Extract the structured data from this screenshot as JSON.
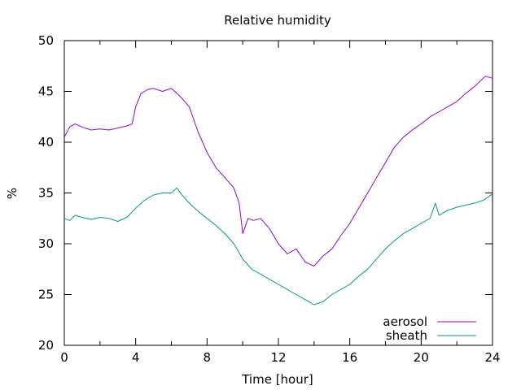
{
  "chart_data": {
    "type": "line",
    "title": "Relative humidity",
    "xlabel": "Time [hour]",
    "ylabel": "%",
    "xlim": [
      0,
      24
    ],
    "ylim": [
      20,
      50
    ],
    "xticks": [
      0,
      4,
      8,
      12,
      16,
      20,
      24
    ],
    "yticks": [
      20,
      25,
      30,
      35,
      40,
      45,
      50
    ],
    "xminor": [
      2,
      6,
      10,
      14,
      18,
      22
    ],
    "grid": false,
    "legend_position": "bottom-right",
    "series": [
      {
        "name": "aerosol",
        "color": "#9400d3",
        "x": [
          0,
          0.3,
          0.6,
          1,
          1.5,
          2,
          2.5,
          3,
          3.5,
          3.8,
          4.0,
          4.3,
          4.7,
          5.0,
          5.5,
          6.0,
          6.5,
          7.0,
          7.5,
          8.0,
          8.5,
          9.0,
          9.5,
          9.8,
          10.0,
          10.3,
          10.6,
          11.0,
          11.5,
          12.0,
          12.5,
          13.0,
          13.5,
          14.0,
          14.5,
          15.0,
          15.5,
          16.0,
          16.5,
          17.0,
          17.5,
          18.0,
          18.5,
          19.0,
          19.5,
          20.0,
          20.5,
          21.0,
          21.5,
          22.0,
          22.5,
          23.0,
          23.3,
          23.6,
          24.0
        ],
        "y": [
          40.5,
          41.5,
          41.8,
          41.5,
          41.2,
          41.3,
          41.2,
          41.4,
          41.6,
          41.8,
          43.5,
          44.8,
          45.2,
          45.3,
          45.0,
          45.3,
          44.5,
          43.5,
          41.0,
          39.0,
          37.5,
          36.5,
          35.5,
          34.0,
          31.0,
          32.5,
          32.3,
          32.5,
          31.5,
          30.0,
          29.0,
          29.5,
          28.2,
          27.8,
          28.8,
          29.5,
          30.8,
          32.0,
          33.5,
          35.0,
          36.5,
          38.0,
          39.5,
          40.5,
          41.2,
          41.8,
          42.5,
          43.0,
          43.5,
          44.0,
          44.8,
          45.5,
          46.0,
          46.5,
          46.3
        ]
      },
      {
        "name": "sheath",
        "color": "#009e73",
        "x": [
          0,
          0.3,
          0.6,
          1,
          1.5,
          2,
          2.5,
          3,
          3.5,
          4.0,
          4.5,
          5.0,
          5.5,
          6.0,
          6.3,
          6.6,
          7.0,
          7.5,
          8.0,
          8.5,
          9.0,
          9.5,
          10.0,
          10.5,
          11.0,
          11.5,
          12.0,
          12.5,
          13.0,
          13.5,
          14.0,
          14.5,
          15.0,
          15.5,
          16.0,
          16.5,
          17.0,
          17.5,
          18.0,
          18.5,
          19.0,
          19.5,
          20.0,
          20.5,
          20.8,
          21.0,
          21.5,
          22.0,
          22.5,
          23.0,
          23.5,
          24.0
        ],
        "y": [
          32.5,
          32.3,
          32.8,
          32.6,
          32.4,
          32.6,
          32.5,
          32.2,
          32.6,
          33.5,
          34.3,
          34.8,
          35.0,
          35.0,
          35.5,
          34.8,
          34.0,
          33.2,
          32.5,
          31.8,
          31.0,
          30.0,
          28.5,
          27.5,
          27.0,
          26.5,
          26.0,
          25.5,
          25.0,
          24.5,
          24.0,
          24.3,
          25.0,
          25.5,
          26.0,
          26.8,
          27.5,
          28.5,
          29.5,
          30.3,
          31.0,
          31.5,
          32.0,
          32.5,
          34.0,
          32.8,
          33.3,
          33.6,
          33.8,
          34.0,
          34.3,
          34.9
        ]
      }
    ]
  }
}
